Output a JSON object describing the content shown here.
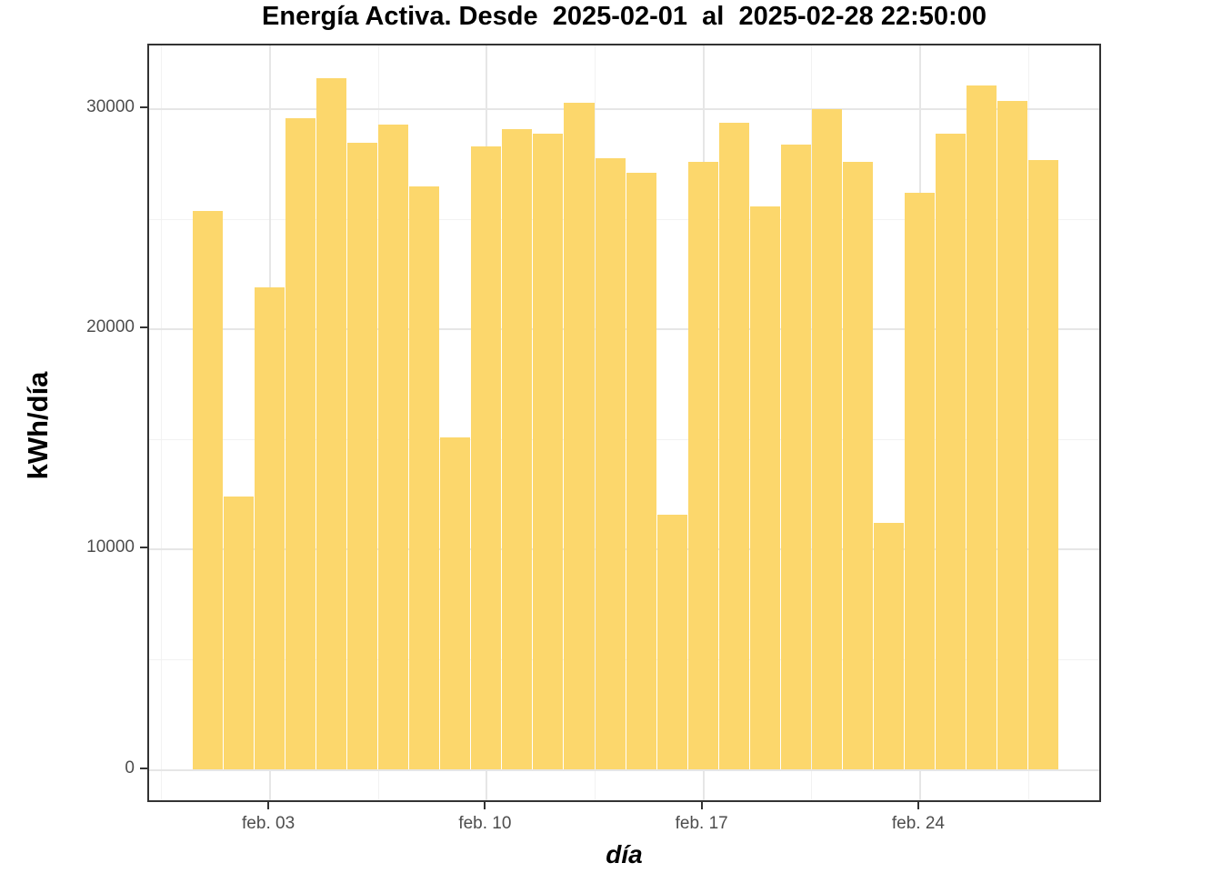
{
  "title": "Energía Activa. Desde  2025-02-01  al  2025-02-28 22:50:00",
  "axes": {
    "y_label": "kWh/día",
    "x_label": "día",
    "y_tick_labels": [
      "0",
      "10000",
      "20000",
      "30000"
    ],
    "x_tick_labels": [
      "feb. 03",
      "feb. 10",
      "feb. 17",
      "feb. 24"
    ]
  },
  "chart_data": {
    "type": "bar",
    "title": "Energía Activa. Desde  2025-02-01  al  2025-02-28 22:50:00",
    "xlabel": "día",
    "ylabel": "kWh/día",
    "x": [
      "2025-02-01",
      "2025-02-02",
      "2025-02-03",
      "2025-02-04",
      "2025-02-05",
      "2025-02-06",
      "2025-02-07",
      "2025-02-08",
      "2025-02-09",
      "2025-02-10",
      "2025-02-11",
      "2025-02-12",
      "2025-02-13",
      "2025-02-14",
      "2025-02-15",
      "2025-02-16",
      "2025-02-17",
      "2025-02-18",
      "2025-02-19",
      "2025-02-20",
      "2025-02-21",
      "2025-02-22",
      "2025-02-23",
      "2025-02-24",
      "2025-02-25",
      "2025-02-26",
      "2025-02-27",
      "2025-02-28"
    ],
    "values": [
      25400,
      12400,
      21900,
      29600,
      31400,
      28500,
      29300,
      26500,
      15100,
      28300,
      29100,
      28900,
      30300,
      27800,
      27100,
      11600,
      27600,
      29400,
      25600,
      28400,
      30000,
      27600,
      11200,
      26200,
      28900,
      31100,
      30400,
      27700
    ],
    "x_ticks": [
      {
        "day": 3,
        "label": "feb. 03"
      },
      {
        "day": 10,
        "label": "feb. 10"
      },
      {
        "day": 17,
        "label": "feb. 17"
      },
      {
        "day": 24,
        "label": "feb. 24"
      }
    ],
    "y_ticks": [
      0,
      10000,
      20000,
      30000
    ],
    "y_minor_ticks": [
      5000,
      15000,
      25000
    ],
    "ylim": [
      0,
      32900
    ],
    "grid": true,
    "legend_position": "none"
  },
  "colors": {
    "bar": "#FCD76C",
    "panel_border": "#333333",
    "grid_major": "#E6E6E6",
    "grid_minor": "#F2F2F2",
    "tick_mark": "#333333",
    "tick_text": "#4D4D4D",
    "title_text": "#000000",
    "background": "#FFFFFF"
  }
}
